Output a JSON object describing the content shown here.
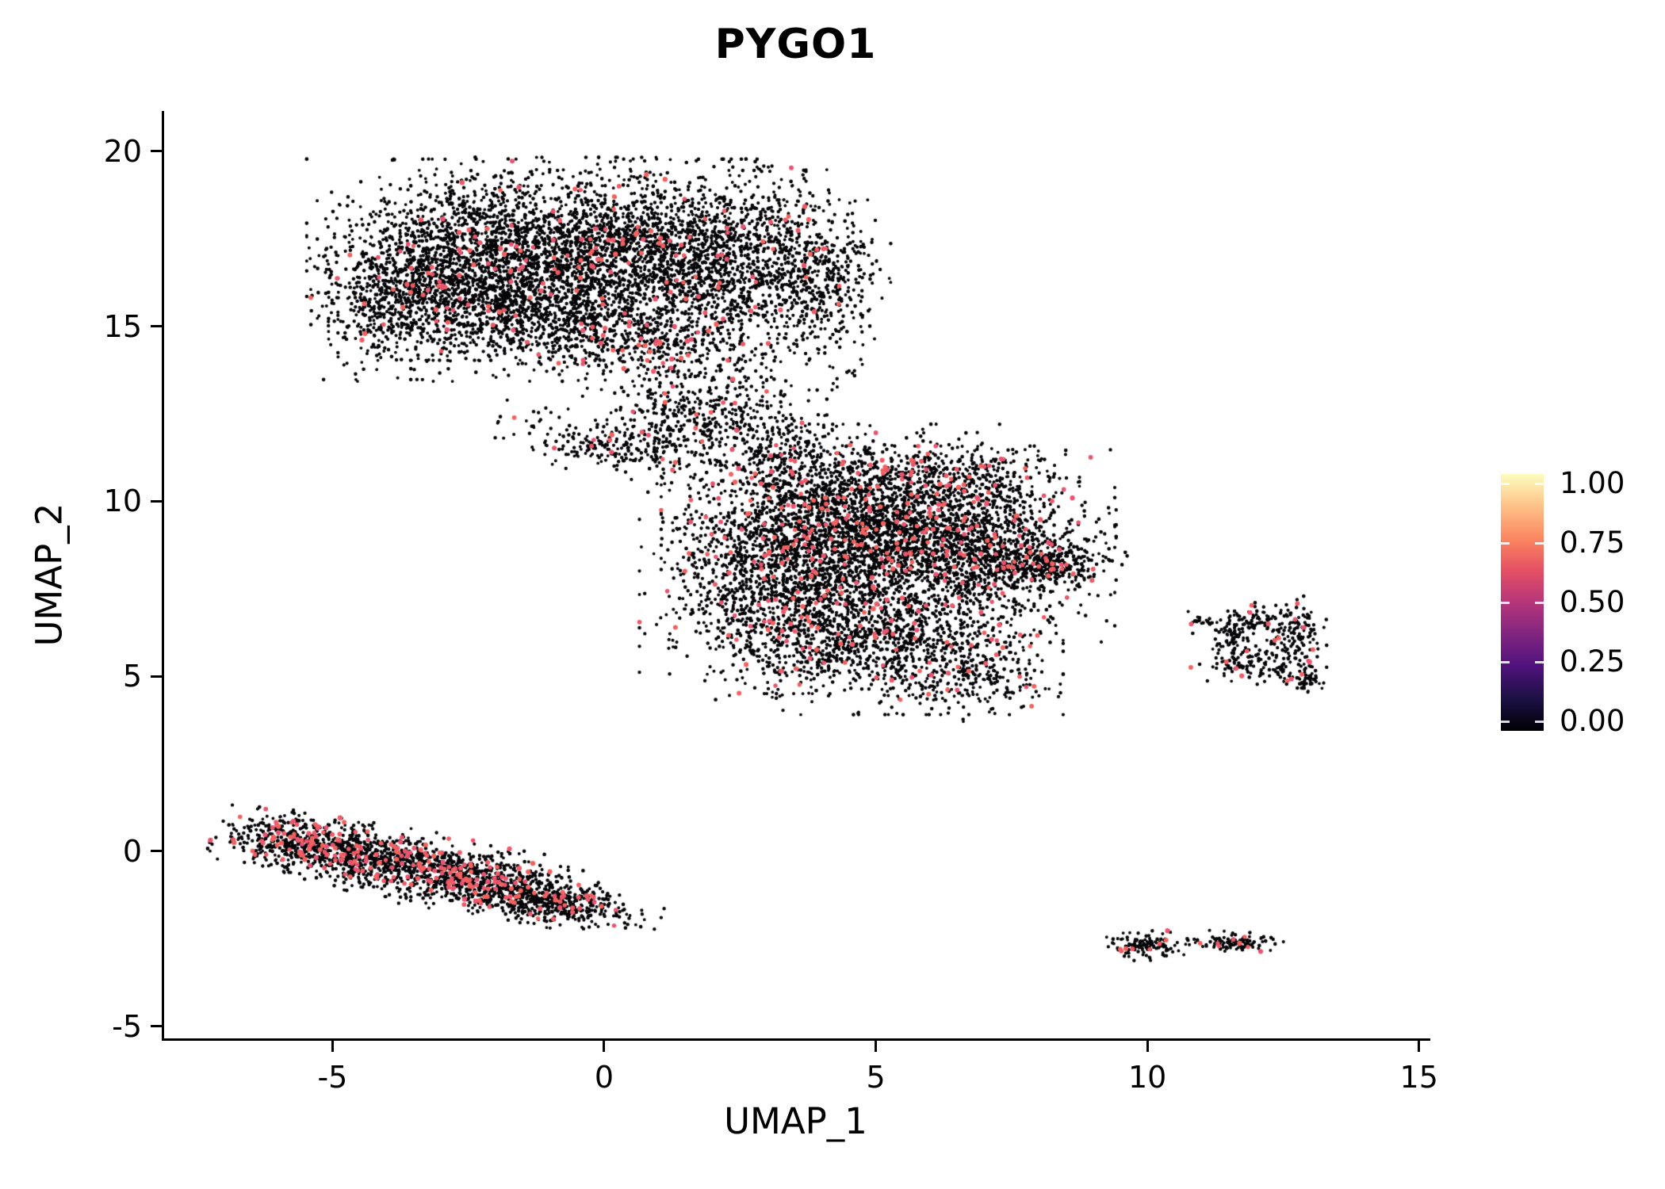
{
  "chart_data": {
    "type": "scatter",
    "title": "PYGO1",
    "xlabel": "UMAP_1",
    "ylabel": "UMAP_2",
    "xlim": [
      -8.1,
      15.15
    ],
    "ylim": [
      -5.35,
      21.15
    ],
    "x_ticks": [
      -5,
      0,
      5,
      10,
      15
    ],
    "y_ticks": [
      20,
      15,
      10,
      5,
      0,
      -5
    ],
    "grid": false,
    "legend_position": "right",
    "colorbar": {
      "labels": [
        "1.00",
        "0.75",
        "0.50",
        "0.25",
        "0.00"
      ],
      "colormap": "magma",
      "stops_bottom_to_top": [
        "#000004",
        "#1c1044",
        "#4f127b",
        "#812581",
        "#b5367a",
        "#e55064",
        "#fb8761",
        "#fec287",
        "#fcfdbf"
      ]
    },
    "points": {
      "base_color": "#050508",
      "expressing_colors": [
        "#ee5a68",
        "#e85470",
        "#f2615e"
      ],
      "base_radius": 1.9,
      "expressing_radius": 2.7
    },
    "seed": 42,
    "clusters_note": "each cluster: [center_x, center_y, sd_x, sd_y, rotation_deg, n_points, fraction_expressing]",
    "clusters": [
      [
        -2.6,
        16.9,
        1.15,
        1.15,
        0,
        1600,
        0.03
      ],
      [
        -0.2,
        17.2,
        1.25,
        1.05,
        0,
        1600,
        0.035
      ],
      [
        2.1,
        16.9,
        1.05,
        1.15,
        0,
        1300,
        0.035
      ],
      [
        -1.4,
        15.3,
        1.4,
        0.75,
        0,
        900,
        0.03
      ],
      [
        3.9,
        16.3,
        0.55,
        1.25,
        0,
        450,
        0.03
      ],
      [
        1.0,
        14.5,
        0.9,
        0.6,
        0,
        350,
        0.04
      ],
      [
        -3.9,
        15.6,
        0.6,
        0.85,
        0,
        380,
        0.03
      ],
      [
        0.2,
        11.6,
        0.9,
        0.35,
        -15,
        220,
        0.05
      ],
      [
        1.5,
        12.4,
        0.7,
        0.6,
        0,
        260,
        0.05
      ],
      [
        2.6,
        12.3,
        0.6,
        0.9,
        0,
        220,
        0.04
      ],
      [
        3.4,
        11.2,
        0.5,
        0.6,
        0,
        150,
        0.04
      ],
      [
        4.3,
        9.7,
        1.3,
        1.0,
        0,
        1500,
        0.06
      ],
      [
        5.9,
        8.7,
        1.4,
        1.15,
        0,
        1800,
        0.07
      ],
      [
        3.4,
        7.5,
        1.1,
        1.2,
        0,
        1300,
        0.05
      ],
      [
        5.2,
        5.9,
        1.3,
        0.8,
        0,
        900,
        0.05
      ],
      [
        7.3,
        8.4,
        0.85,
        0.7,
        0,
        500,
        0.06
      ],
      [
        8.4,
        8.2,
        0.5,
        0.3,
        10,
        180,
        0.05
      ],
      [
        6.5,
        10.7,
        0.9,
        0.5,
        0,
        300,
        0.06
      ],
      [
        6.9,
        4.9,
        0.6,
        0.4,
        0,
        150,
        0.04
      ],
      [
        12.0,
        6.6,
        0.5,
        0.22,
        0,
        120,
        0.05
      ],
      [
        12.75,
        6.2,
        0.22,
        0.45,
        0,
        100,
        0.04
      ],
      [
        12.05,
        5.35,
        0.5,
        0.28,
        0,
        130,
        0.05
      ],
      [
        11.6,
        6.05,
        0.18,
        0.3,
        0,
        60,
        0.03
      ],
      [
        13.0,
        4.85,
        0.14,
        0.22,
        0,
        45,
        0.04
      ],
      [
        11.05,
        6.55,
        0.1,
        0.08,
        0,
        14,
        0.05
      ],
      [
        -5.6,
        0.25,
        0.65,
        0.35,
        -12,
        520,
        0.12
      ],
      [
        -4.1,
        -0.25,
        0.9,
        0.4,
        -14,
        650,
        0.12
      ],
      [
        -2.4,
        -0.8,
        0.9,
        0.4,
        -14,
        650,
        0.12
      ],
      [
        -0.9,
        -1.45,
        0.8,
        0.3,
        -12,
        450,
        0.1
      ],
      [
        10.0,
        -2.7,
        0.3,
        0.17,
        0,
        130,
        0.05
      ],
      [
        11.55,
        -2.6,
        0.38,
        0.12,
        -5,
        110,
        0.06
      ],
      [
        6.6,
        3.7,
        0.04,
        0.04,
        0,
        2,
        0.0
      ]
    ]
  }
}
